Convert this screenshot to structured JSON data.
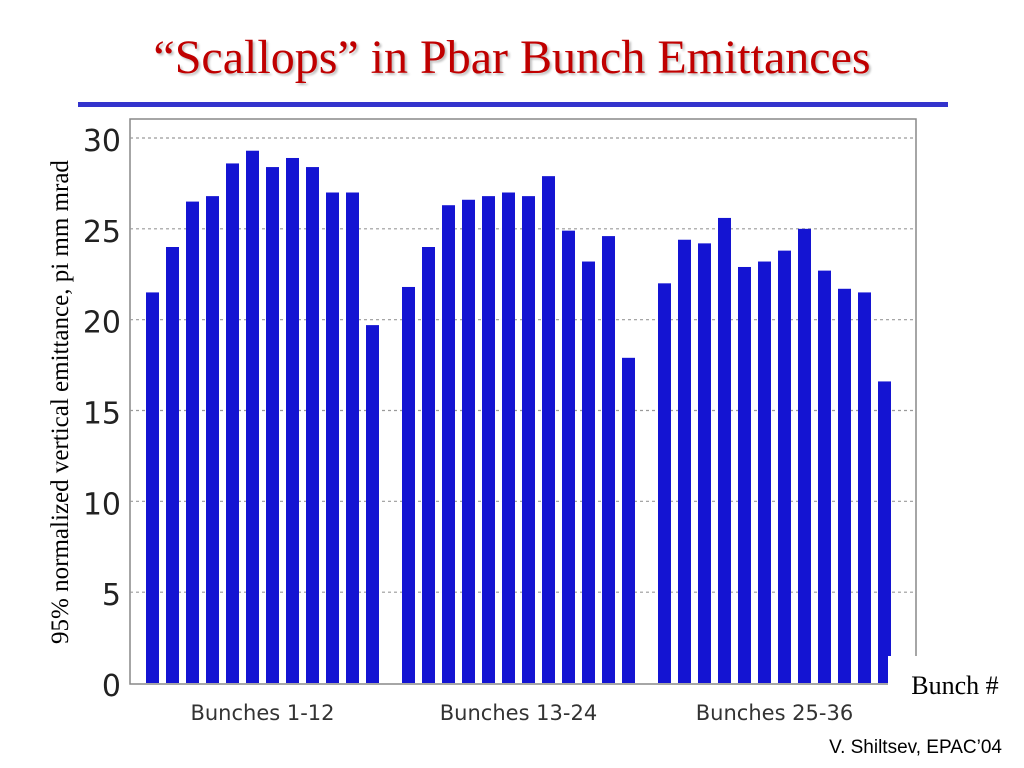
{
  "slide": {
    "title": "“Scallops” in Pbar Bunch Emittances",
    "credit": "V. Shiltsev, EPAC’04"
  },
  "colors": {
    "title": "#c00000",
    "rule": "#3333cc",
    "bars": "#1414d2"
  },
  "chart_data": {
    "type": "bar",
    "title": "",
    "ylabel": "95% normalized vertical emittance, pi mm mrad",
    "xlabel": "Bunch #",
    "ylim": [
      0,
      30
    ],
    "yticks": [
      "0",
      "5",
      "10",
      "15",
      "20",
      "25",
      "30"
    ],
    "grid": true,
    "groups": [
      {
        "label": "Bunches 1-12",
        "values": [
          21.5,
          24.0,
          26.5,
          26.8,
          28.6,
          29.3,
          28.4,
          28.9,
          28.4,
          27.0,
          27.0,
          19.7
        ]
      },
      {
        "label": "Bunches 13-24",
        "values": [
          21.8,
          24.0,
          26.3,
          26.6,
          26.8,
          27.0,
          26.8,
          27.9,
          24.9,
          23.2,
          24.6,
          17.9
        ]
      },
      {
        "label": "Bunches 25-36",
        "values": [
          22.0,
          24.4,
          24.2,
          25.6,
          22.9,
          23.2,
          23.8,
          25.0,
          22.7,
          21.7,
          21.5,
          16.6
        ]
      }
    ]
  }
}
